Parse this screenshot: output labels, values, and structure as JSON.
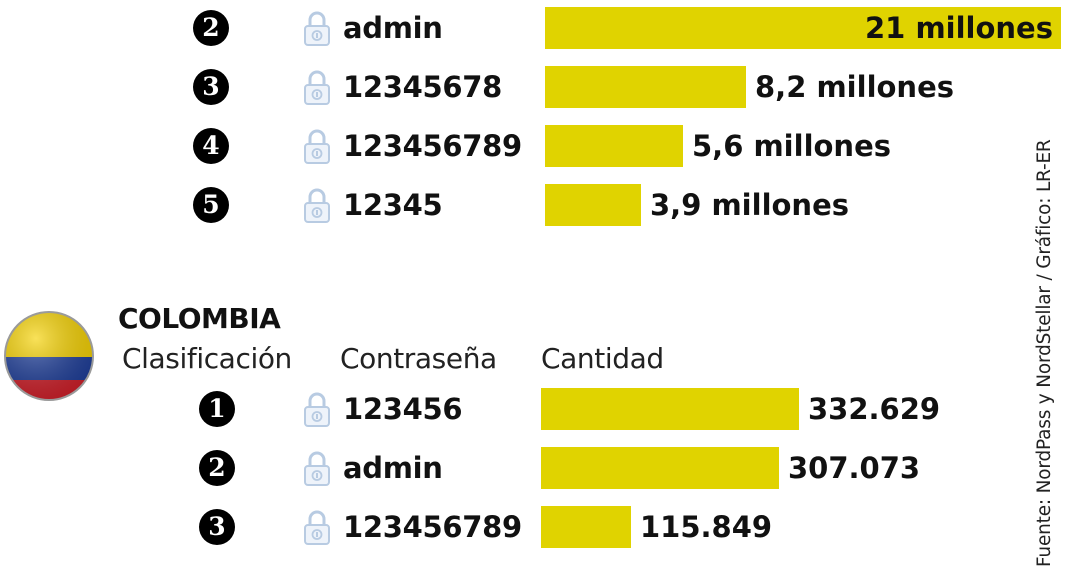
{
  "chart_data": [
    {
      "type": "bar",
      "orientation": "horizontal",
      "region": "",
      "bar_color": "#E0D300",
      "rows": [
        {
          "rank": "2",
          "password": "admin",
          "value": 21000000,
          "label": "21 millones"
        },
        {
          "rank": "3",
          "password": "12345678",
          "value": 8200000,
          "label": "8,2 millones"
        },
        {
          "rank": "4",
          "password": "123456789",
          "value": 5600000,
          "label": "5,6 millones"
        },
        {
          "rank": "5",
          "password": "12345",
          "value": 3900000,
          "label": "3,9 millones"
        }
      ]
    },
    {
      "type": "bar",
      "orientation": "horizontal",
      "region": "COLOMBIA",
      "bar_color": "#E0D300",
      "headers": {
        "rank": "Clasificación",
        "password": "Contraseña",
        "value": "Cantidad"
      },
      "rows": [
        {
          "rank": "1",
          "password": "123456",
          "value": 332629,
          "label": "332.629"
        },
        {
          "rank": "2",
          "password": "admin",
          "value": 307073,
          "label": "307.073"
        },
        {
          "rank": "3",
          "password": "123456789",
          "value": 115849,
          "label": "115.849"
        }
      ]
    }
  ],
  "icons": {
    "lock": "padlock-icon",
    "flag": "colombia-flag-icon"
  },
  "flag_colors": {
    "yellow": "#F6D200",
    "blue": "#1F3F9B",
    "red": "#D0202A"
  },
  "source": "Fuente: NordPass y NordStellar / Gráfico: LR-ER"
}
